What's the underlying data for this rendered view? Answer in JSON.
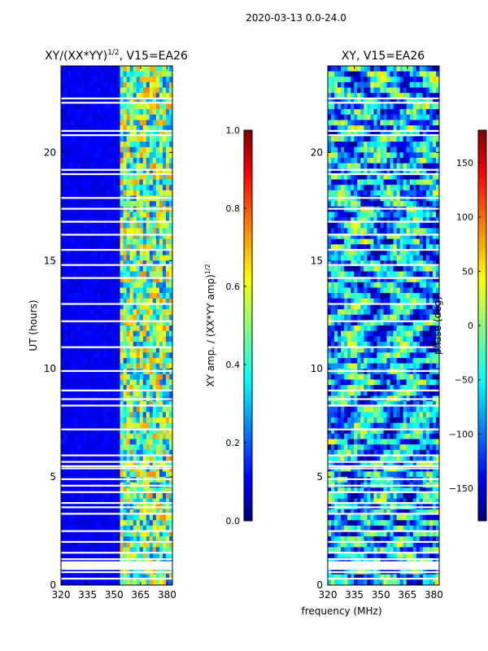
{
  "figure_title": "2020-03-13 0.0-24.0",
  "xlabel_shared": "frequency (MHz)",
  "chart_data": [
    {
      "type": "heatmap",
      "title_prefix": "XY/(XX*YY)",
      "title_exp": "1/2",
      "title_suffix": ", V15=EA26",
      "xlabel": "",
      "ylabel": "UT (hours)",
      "xlim": [
        320,
        383
      ],
      "ylim": [
        0,
        24
      ],
      "xticks": [
        320,
        335,
        350,
        365,
        380
      ],
      "yticks": [
        0,
        5,
        10,
        15,
        20
      ],
      "colormap": "jet",
      "colorbar": {
        "label_prefix": "XY amp. / (XX*YY amp)",
        "label_exp": "1/2",
        "ticks": [
          "0.0",
          "0.2",
          "0.4",
          "0.6",
          "0.8",
          "1.0"
        ],
        "range": [
          0,
          1
        ]
      },
      "content": "normalized amplitude: low (~0.1) below 353 MHz, elevated (~0.3-0.8) above 353 MHz, horizontal flagged gaps"
    },
    {
      "type": "heatmap",
      "title": "XY, V15=EA26",
      "xlabel": "",
      "ylabel": "",
      "xlim": [
        320,
        383
      ],
      "ylim": [
        0,
        24
      ],
      "xticks": [
        320,
        335,
        350,
        365,
        380
      ],
      "yticks": [
        0,
        5,
        10,
        15,
        20
      ],
      "colormap": "jet",
      "colorbar": {
        "label": "phase (deg)",
        "ticks": [
          "150",
          "100",
          "50",
          "0",
          "−50",
          "−100",
          "−150"
        ],
        "range": [
          -180,
          180
        ]
      },
      "content": "XY phase, mostly near -50 to 0 deg with banded structure, horizontal flagged gaps"
    }
  ]
}
